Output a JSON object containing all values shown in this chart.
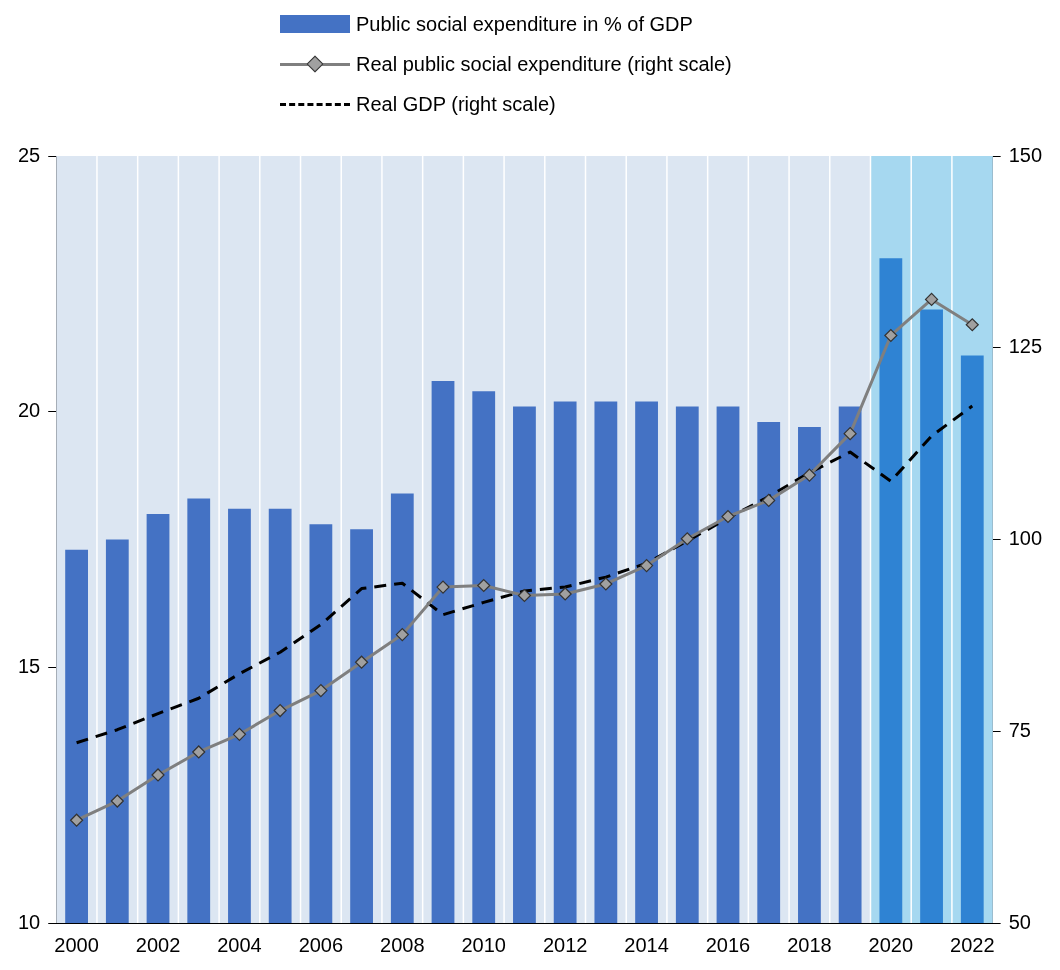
{
  "chart_data": {
    "type": "bar",
    "categories": [
      "2000",
      null,
      "2002",
      null,
      "2004",
      null,
      "2006",
      null,
      "2008",
      null,
      "2010",
      null,
      "2012",
      null,
      "2014",
      null,
      "2016",
      null,
      "2018",
      null,
      "2020",
      null,
      "2022"
    ],
    "series": [
      {
        "name": "Public social expenditure in % of GDP",
        "colors": [
          "#4472c4",
          "#4472c4",
          "#4472c4",
          "#4472c4",
          "#4472c4",
          "#4472c4",
          "#4472c4",
          "#4472c4",
          "#4472c4",
          "#4472c4",
          "#4472c4",
          "#4472c4",
          "#4472c4",
          "#4472c4",
          "#4472c4",
          "#4472c4",
          "#4472c4",
          "#4472c4",
          "#4472c4",
          "#4472c4",
          "#2f83d3",
          "#2f83d3",
          "#2f83d3"
        ],
        "values": [
          17.3,
          17.5,
          18.0,
          18.3,
          18.1,
          18.1,
          17.8,
          17.7,
          18.4,
          20.6,
          20.4,
          20.1,
          20.2,
          20.2,
          20.2,
          20.1,
          20.1,
          19.8,
          19.7,
          20.1,
          23.0,
          22.0,
          21.1
        ]
      },
      {
        "name": "Real public social expenditure (right scale)",
        "type": "line",
        "axis": "y2",
        "color": "#7f7f7f",
        "marker": "diamond",
        "line_style": "solid",
        "values": [
          63.4,
          65.9,
          69.3,
          72.3,
          74.6,
          77.7,
          80.3,
          84.0,
          87.6,
          93.8,
          94.0,
          92.7,
          92.9,
          94.2,
          96.6,
          100.1,
          103.0,
          105.1,
          108.4,
          113.8,
          126.6,
          131.3,
          128.0
        ]
      },
      {
        "name": "Real GDP (right scale)",
        "type": "line",
        "axis": "y2",
        "color": "#000000",
        "marker": "none",
        "line_style": "dashed",
        "values": [
          73.5,
          75.2,
          77.3,
          79.3,
          82.5,
          85.3,
          88.9,
          93.6,
          94.3,
          90.2,
          91.8,
          93.3,
          93.8,
          95.1,
          96.9,
          99.8,
          102.8,
          105.6,
          108.7,
          111.4,
          107.6,
          113.5,
          117.4
        ]
      }
    ],
    "ylim": [
      10,
      25
    ],
    "yticks": [
      10,
      15,
      20,
      25
    ],
    "y2lim": [
      50,
      150
    ],
    "y2ticks": [
      50,
      75,
      100,
      125,
      150
    ],
    "grid": "x",
    "legend": "top",
    "bands": [
      {
        "axis": "x",
        "from": "2020",
        "to": "2022",
        "color": "#a6d8f0"
      }
    ]
  }
}
